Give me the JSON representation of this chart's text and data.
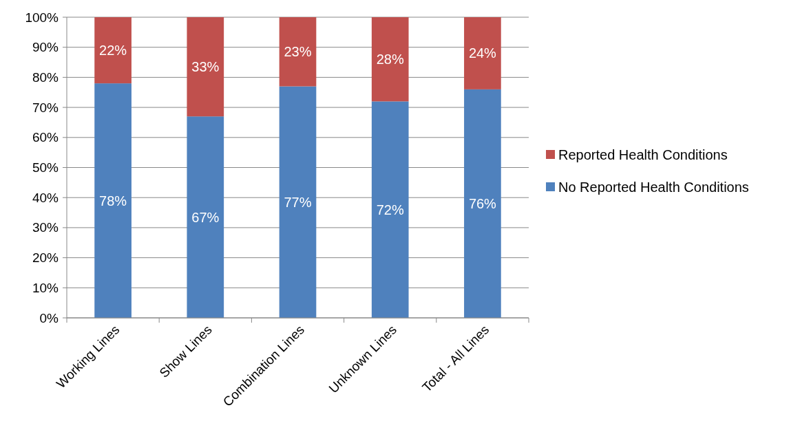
{
  "chart_data": {
    "type": "bar",
    "stacked": true,
    "categories": [
      "Working Lines",
      "Show Lines",
      "Combination Lines",
      "Unknown Lines",
      "Total - All Lines"
    ],
    "series": [
      {
        "name": "No Reported Health Conditions",
        "color": "#4f81bd",
        "values": [
          78,
          67,
          77,
          72,
          76
        ],
        "value_labels": [
          "78%",
          "67%",
          "77%",
          "72%",
          "76%"
        ]
      },
      {
        "name": "Reported Health Conditions",
        "color": "#c0504d",
        "values": [
          22,
          33,
          23,
          28,
          24
        ],
        "value_labels": [
          "22%",
          "33%",
          "23%",
          "28%",
          "24%"
        ]
      }
    ],
    "ylim": [
      0,
      100
    ],
    "yticks": [
      {
        "value": 0,
        "label": "0%"
      },
      {
        "value": 10,
        "label": "10%"
      },
      {
        "value": 20,
        "label": "20%"
      },
      {
        "value": 30,
        "label": "30%"
      },
      {
        "value": 40,
        "label": "40%"
      },
      {
        "value": 50,
        "label": "50%"
      },
      {
        "value": 60,
        "label": "60%"
      },
      {
        "value": 70,
        "label": "70%"
      },
      {
        "value": 80,
        "label": "80%"
      },
      {
        "value": 90,
        "label": "90%"
      },
      {
        "value": 100,
        "label": "100%"
      }
    ],
    "grid": "y",
    "legend": "right"
  }
}
